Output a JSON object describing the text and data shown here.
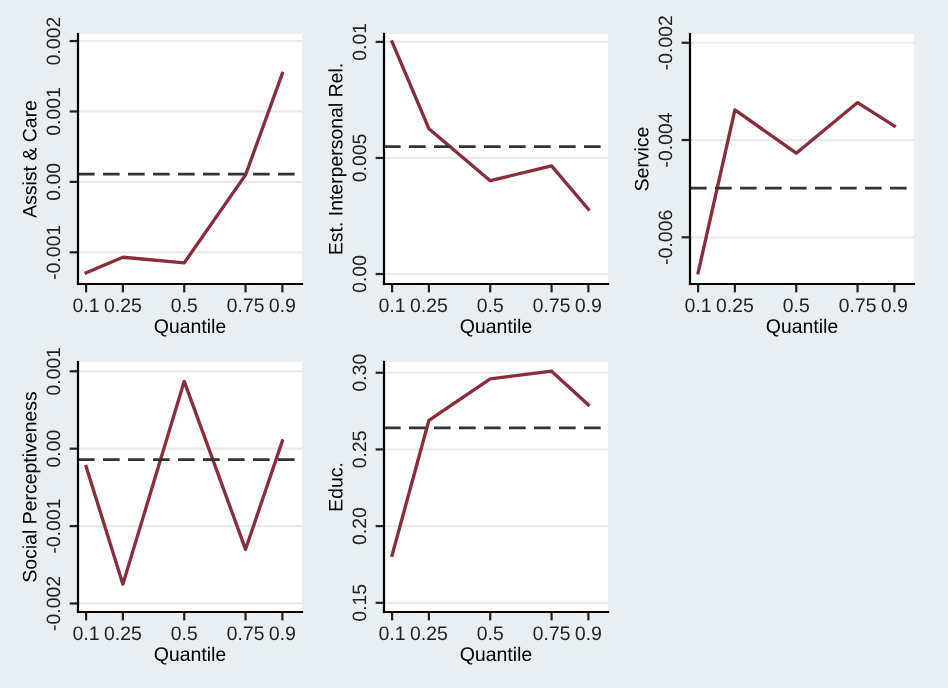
{
  "chart_data": [
    {
      "type": "line",
      "xlabel": "Quantile",
      "ylabel": "Assist & Care",
      "x": [
        0.1,
        0.25,
        0.5,
        0.75,
        0.9
      ],
      "series": [
        {
          "color": "#8b2c3a",
          "values": [
            -0.00129,
            -0.00107,
            -0.00115,
            0.0001,
            0.00154
          ]
        }
      ],
      "xlim": [
        0.067,
        0.98
      ],
      "xticks": [
        0.1,
        0.25,
        0.5,
        0.75,
        0.9
      ],
      "ylim": [
        -0.00145,
        0.0021
      ],
      "yticks": [
        {
          "value": -0.001,
          "label": "-0.001"
        },
        {
          "value": 0,
          "label": "0.00"
        },
        {
          "value": 0.001,
          "label": "0.001"
        },
        {
          "value": 0.002,
          "label": "0.002"
        }
      ],
      "ref_lines": [
        {
          "axis": "y",
          "value": 0.00011,
          "color": "#333333",
          "line_style": "dashed"
        }
      ],
      "grid": "y"
    },
    {
      "type": "line",
      "xlabel": "Quantile",
      "ylabel": "Est. Interpersonal Rel.",
      "x": [
        0.1,
        0.25,
        0.5,
        0.75,
        0.9
      ],
      "series": [
        {
          "color": "#8b2c3a",
          "values": [
            0.01,
            0.00626,
            0.00402,
            0.00466,
            0.00279
          ]
        }
      ],
      "xlim": [
        0.067,
        0.98
      ],
      "xticks": [
        0.1,
        0.25,
        0.5,
        0.75,
        0.9
      ],
      "ylim": [
        -0.00043,
        0.01034
      ],
      "yticks": [
        {
          "value": 0,
          "label": "0.00"
        },
        {
          "value": 0.005,
          "label": "0.005"
        },
        {
          "value": 0.01,
          "label": "0.01"
        }
      ],
      "ref_lines": [
        {
          "axis": "y",
          "value": 0.00549,
          "color": "#333333",
          "line_style": "dashed"
        }
      ],
      "grid": "y"
    },
    {
      "type": "line",
      "xlabel": "Quantile",
      "ylabel": "Service",
      "x": [
        0.1,
        0.25,
        0.5,
        0.75,
        0.9
      ],
      "series": [
        {
          "color": "#8b2c3a",
          "values": [
            -0.00673,
            -0.00338,
            -0.00427,
            -0.00323,
            -0.00371
          ]
        }
      ],
      "xlim": [
        0.067,
        0.98
      ],
      "xticks": [
        0.1,
        0.25,
        0.5,
        0.75,
        0.9
      ],
      "ylim": [
        -0.00696,
        -0.00182
      ],
      "yticks": [
        {
          "value": -0.006,
          "label": "-0.006"
        },
        {
          "value": -0.004,
          "label": "-0.004"
        },
        {
          "value": -0.002,
          "label": "-0.002"
        }
      ],
      "ref_lines": [
        {
          "axis": "y",
          "value": -0.00499,
          "color": "#333333",
          "line_style": "dashed"
        }
      ],
      "grid": "y"
    },
    {
      "type": "line",
      "xlabel": "Quantile",
      "ylabel": "Social Perceptiveness",
      "x": [
        0.1,
        0.25,
        0.5,
        0.75,
        0.9
      ],
      "series": [
        {
          "color": "#8b2c3a",
          "values": [
            -0.00023,
            -0.00175,
            0.00087,
            -0.0013,
            0.0001
          ]
        }
      ],
      "xlim": [
        0.067,
        0.98
      ],
      "xticks": [
        0.1,
        0.25,
        0.5,
        0.75,
        0.9
      ],
      "ylim": [
        -0.00211,
        0.00112
      ],
      "yticks": [
        {
          "value": -0.002,
          "label": "-0.002"
        },
        {
          "value": -0.001,
          "label": "-0.001"
        },
        {
          "value": 0,
          "label": "0.00"
        },
        {
          "value": 0.001,
          "label": "0.001"
        }
      ],
      "ref_lines": [
        {
          "axis": "y",
          "value": -0.00014,
          "color": "#333333",
          "line_style": "dashed"
        }
      ],
      "grid": "y"
    },
    {
      "type": "line",
      "xlabel": "Quantile",
      "ylabel": "Educ.",
      "x": [
        0.1,
        0.25,
        0.5,
        0.75,
        0.9
      ],
      "series": [
        {
          "color": "#8b2c3a",
          "values": [
            0.181,
            0.269,
            0.296,
            0.301,
            0.279
          ]
        }
      ],
      "xlim": [
        0.067,
        0.98
      ],
      "xticks": [
        0.1,
        0.25,
        0.5,
        0.75,
        0.9
      ],
      "ylim": [
        0.144,
        0.307
      ],
      "yticks": [
        {
          "value": 0.15,
          "label": "0.15"
        },
        {
          "value": 0.2,
          "label": "0.20"
        },
        {
          "value": 0.25,
          "label": "0.25"
        },
        {
          "value": 0.3,
          "label": "0.30"
        }
      ],
      "ref_lines": [
        {
          "axis": "y",
          "value": 0.264,
          "color": "#333333",
          "line_style": "dashed"
        }
      ],
      "grid": "y"
    }
  ]
}
